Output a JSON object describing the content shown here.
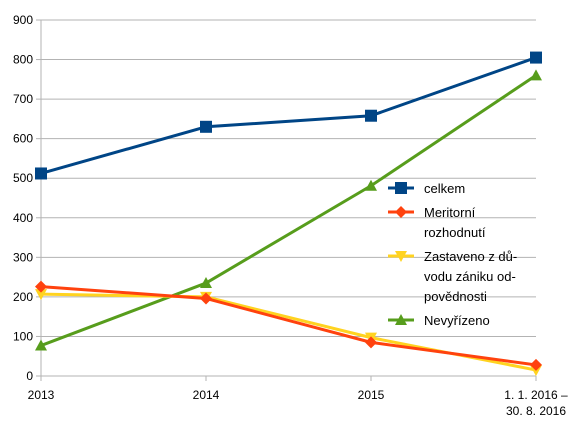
{
  "chart_data": {
    "type": "line",
    "categories": [
      "2013",
      "2014",
      "2015",
      "1. 1. 2016 – 30. 8. 2016"
    ],
    "category_tick_lines": [
      [
        "2013"
      ],
      [
        "2014"
      ],
      [
        "2015"
      ],
      [
        "1. 1. 2016 –",
        "30. 8. 2016"
      ]
    ],
    "ylim": [
      0,
      900
    ],
    "y_ticks": [
      "0",
      "100",
      "200",
      "300",
      "400",
      "500",
      "600",
      "700",
      "800",
      "900"
    ],
    "grid": "horizontal",
    "legend_position": "right",
    "series": [
      {
        "name": "celkem",
        "legend_lines": [
          "celkem"
        ],
        "color": "#004586",
        "marker": "square",
        "values": [
          512,
          630,
          658,
          805
        ]
      },
      {
        "name": "Meritorní rozhodnutí",
        "legend_lines": [
          "Meritorní",
          "rozhodnutí"
        ],
        "color": "#ff420e",
        "marker": "diamond",
        "values": [
          226,
          196,
          85,
          28
        ]
      },
      {
        "name": "Zastaveno z důvodu zániku odpovědnosti",
        "legend_lines": [
          "Zastaveno z dů-",
          "vodu zániku od-",
          "povědnosti"
        ],
        "color": "#ffd320",
        "marker": "triangle-down",
        "values": [
          207,
          200,
          97,
          15
        ]
      },
      {
        "name": "Nevyřízeno",
        "legend_lines": [
          "Nevyřízeno"
        ],
        "color": "#579d1c",
        "marker": "triangle-up",
        "values": [
          77,
          235,
          481,
          760
        ]
      }
    ]
  }
}
